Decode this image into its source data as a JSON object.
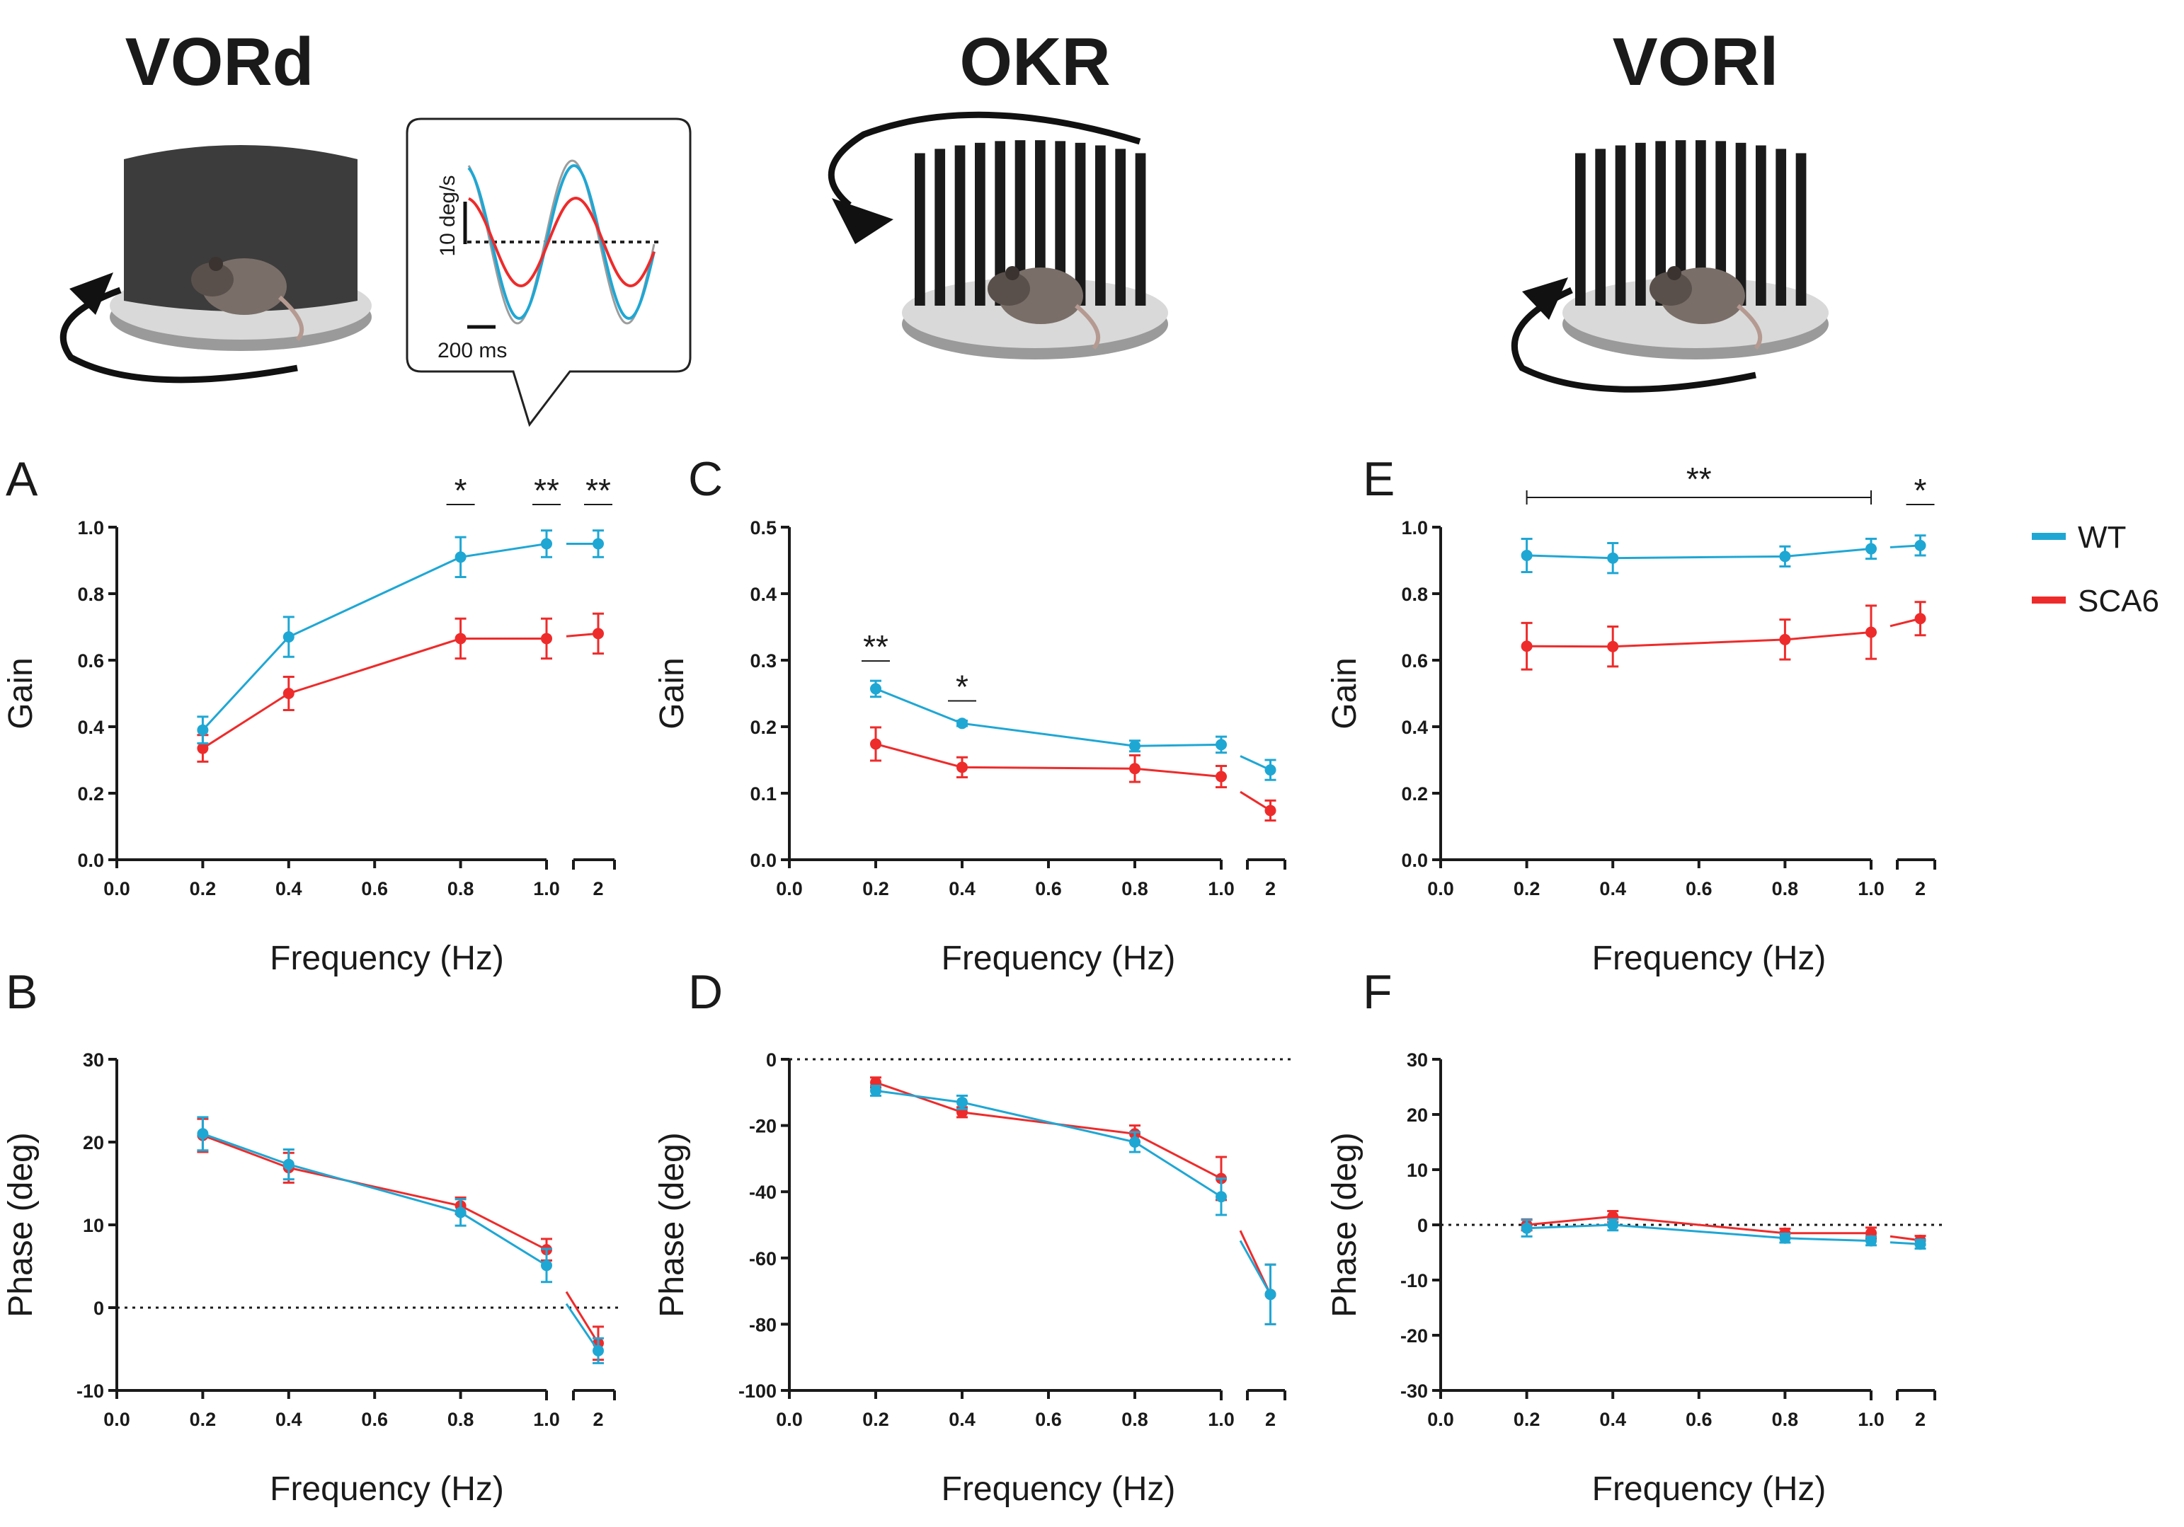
{
  "colors": {
    "wt": "#1fa7d4",
    "sca6": "#ee2b2b"
  },
  "titles": {
    "vord": "VORd",
    "okr": "OKR",
    "vori": "VORl"
  },
  "inset": {
    "ylabel": "10 deg/s",
    "xlabel": "200 ms"
  },
  "legend": {
    "wt": "WT",
    "sca6": "SCA6"
  },
  "chart_data": [
    {
      "id": "A",
      "label": "A",
      "type": "line",
      "xlabel": "Frequency (Hz)",
      "ylabel": "Gain",
      "ylim": [
        0,
        1
      ],
      "yticks": [
        0.0,
        0.2,
        0.4,
        0.6,
        0.8,
        1.0
      ],
      "ytick_labels": [
        "0.0",
        "0.2",
        "0.4",
        "0.6",
        "0.8",
        "1.0"
      ],
      "xticks": [
        "0.0",
        "0.2",
        "0.4",
        "0.6",
        "0.8",
        "1.0"
      ],
      "xbreak_tick": "2",
      "x": [
        0.2,
        0.4,
        0.8,
        1.0
      ],
      "x_break": 2,
      "series": [
        {
          "name": "WT",
          "values": [
            0.39,
            0.67,
            0.91,
            0.95
          ],
          "errors": [
            0.04,
            0.06,
            0.06,
            0.04
          ],
          "break_value": 0.95,
          "break_error": 0.04
        },
        {
          "name": "SCA6",
          "values": [
            0.335,
            0.5,
            0.665,
            0.665
          ],
          "errors": [
            0.04,
            0.05,
            0.06,
            0.06
          ],
          "break_value": 0.68,
          "break_error": 0.06
        }
      ],
      "significance": [
        {
          "text": "*",
          "x": 0.8
        },
        {
          "text": "**",
          "x": 1.0
        },
        {
          "text": "**",
          "x": 2
        }
      ]
    },
    {
      "id": "C",
      "label": "C",
      "type": "line",
      "xlabel": "Frequency (Hz)",
      "ylabel": "Gain",
      "ylim": [
        0,
        0.5
      ],
      "yticks": [
        0.0,
        0.1,
        0.2,
        0.3,
        0.4,
        0.5
      ],
      "ytick_labels": [
        "0.0",
        "0.1",
        "0.2",
        "0.3",
        "0.4",
        "0.5"
      ],
      "xticks": [
        "0.0",
        "0.2",
        "0.4",
        "0.6",
        "0.8",
        "1.0"
      ],
      "xbreak_tick": "2",
      "x": [
        0.2,
        0.4,
        0.8,
        1.0
      ],
      "x_break": 2,
      "series": [
        {
          "name": "WT",
          "values": [
            0.257,
            0.205,
            0.171,
            0.173
          ],
          "errors": [
            0.012,
            0.004,
            0.008,
            0.012
          ],
          "break_value": 0.135,
          "break_error": 0.015
        },
        {
          "name": "SCA6",
          "values": [
            0.174,
            0.139,
            0.137,
            0.125
          ],
          "errors": [
            0.025,
            0.015,
            0.02,
            0.016
          ],
          "break_value": 0.074,
          "break_error": 0.015
        }
      ],
      "significance": [
        {
          "text": "**",
          "x": 0.2
        },
        {
          "text": "*",
          "x": 0.4
        }
      ]
    },
    {
      "id": "E",
      "label": "E",
      "type": "line",
      "xlabel": "Frequency (Hz)",
      "ylabel": "Gain",
      "ylim": [
        0,
        1
      ],
      "yticks": [
        0.0,
        0.2,
        0.4,
        0.6,
        0.8,
        1.0
      ],
      "ytick_labels": [
        "0.0",
        "0.2",
        "0.4",
        "0.6",
        "0.8",
        "1.0"
      ],
      "xticks": [
        "0.0",
        "0.2",
        "0.4",
        "0.6",
        "0.8",
        "1.0"
      ],
      "xbreak_tick": "2",
      "x": [
        0.2,
        0.4,
        0.8,
        1.0
      ],
      "x_break": 2,
      "series": [
        {
          "name": "WT",
          "values": [
            0.915,
            0.907,
            0.912,
            0.935
          ],
          "errors": [
            0.05,
            0.045,
            0.03,
            0.03
          ],
          "break_value": 0.945,
          "break_error": 0.03
        },
        {
          "name": "SCA6",
          "values": [
            0.642,
            0.641,
            0.662,
            0.684
          ],
          "errors": [
            0.07,
            0.06,
            0.06,
            0.08
          ],
          "break_value": 0.725,
          "break_error": 0.05
        }
      ],
      "significance": [
        {
          "text": "**",
          "x_range": [
            0.2,
            1.0
          ]
        },
        {
          "text": "*",
          "x": 2
        }
      ]
    },
    {
      "id": "B",
      "label": "B",
      "type": "line",
      "xlabel": "Frequency (Hz)",
      "ylabel": "Phase (deg)",
      "ylim": [
        -10,
        30
      ],
      "yticks": [
        -10,
        0,
        10,
        20,
        30
      ],
      "ytick_labels": [
        "-10",
        "0",
        "10",
        "20",
        "30"
      ],
      "xticks": [
        "0.0",
        "0.2",
        "0.4",
        "0.6",
        "0.8",
        "1.0"
      ],
      "xbreak_tick": "2",
      "x": [
        0.2,
        0.4,
        0.8,
        1.0
      ],
      "x_break": 2,
      "zero_line": 0,
      "series": [
        {
          "name": "WT",
          "values": [
            21.0,
            17.3,
            11.5,
            5.1
          ],
          "errors": [
            2.0,
            1.8,
            1.6,
            2.0
          ],
          "break_value": -5.2,
          "break_error": 1.5
        },
        {
          "name": "SCA6",
          "values": [
            20.8,
            16.9,
            12.3,
            7.0
          ],
          "errors": [
            2.0,
            1.8,
            1.0,
            1.3
          ],
          "break_value": -4.3,
          "break_error": 2.0
        }
      ]
    },
    {
      "id": "D",
      "label": "D",
      "type": "line",
      "xlabel": "Frequency (Hz)",
      "ylabel": "Phase (deg)",
      "ylim": [
        -100,
        0
      ],
      "yticks": [
        -100,
        -80,
        -60,
        -40,
        -20,
        0
      ],
      "ytick_labels": [
        "-100",
        "-80",
        "-60",
        "-40",
        "-20",
        "0"
      ],
      "xticks": [
        "0.0",
        "0.2",
        "0.4",
        "0.6",
        "0.8",
        "1.0"
      ],
      "xbreak_tick": "2",
      "x": [
        0.2,
        0.4,
        0.8,
        1.0
      ],
      "x_break": 2,
      "zero_line": 0,
      "series": [
        {
          "name": "WT",
          "values": [
            -9.5,
            -13.0,
            -25.0,
            -41.5
          ],
          "errors": [
            1.5,
            2.0,
            3.0,
            5.5
          ],
          "break_value": -71.0,
          "break_error": 9.0
        },
        {
          "name": "SCA6",
          "values": [
            -7.0,
            -16.0,
            -22.5,
            -36.0
          ],
          "errors": [
            1.5,
            1.5,
            2.5,
            6.5
          ],
          "break_value": -71.0,
          "break_error": 9.0
        }
      ]
    },
    {
      "id": "F",
      "label": "F",
      "type": "line",
      "xlabel": "Frequency (Hz)",
      "ylabel": "Phase (deg)",
      "ylim": [
        -30,
        30
      ],
      "yticks": [
        -30,
        -20,
        -10,
        0,
        10,
        20,
        30
      ],
      "ytick_labels": [
        "-30",
        "-20",
        "-10",
        "0",
        "10",
        "20",
        "30"
      ],
      "xticks": [
        "0.0",
        "0.2",
        "0.4",
        "0.6",
        "0.8",
        "1.0"
      ],
      "xbreak_tick": "2",
      "x": [
        0.2,
        0.4,
        0.8,
        1.0
      ],
      "x_break": 2,
      "zero_line": 0,
      "series": [
        {
          "name": "WT",
          "values": [
            -0.6,
            0.0,
            -2.4,
            -2.9
          ],
          "errors": [
            1.5,
            1.0,
            0.8,
            0.8
          ],
          "break_value": -3.5,
          "break_error": 0.8
        },
        {
          "name": "SCA6",
          "values": [
            0.0,
            1.5,
            -1.5,
            -1.5
          ],
          "errors": [
            1.0,
            1.0,
            0.8,
            1.0
          ],
          "break_value": -2.8,
          "break_error": 0.8
        }
      ]
    }
  ]
}
